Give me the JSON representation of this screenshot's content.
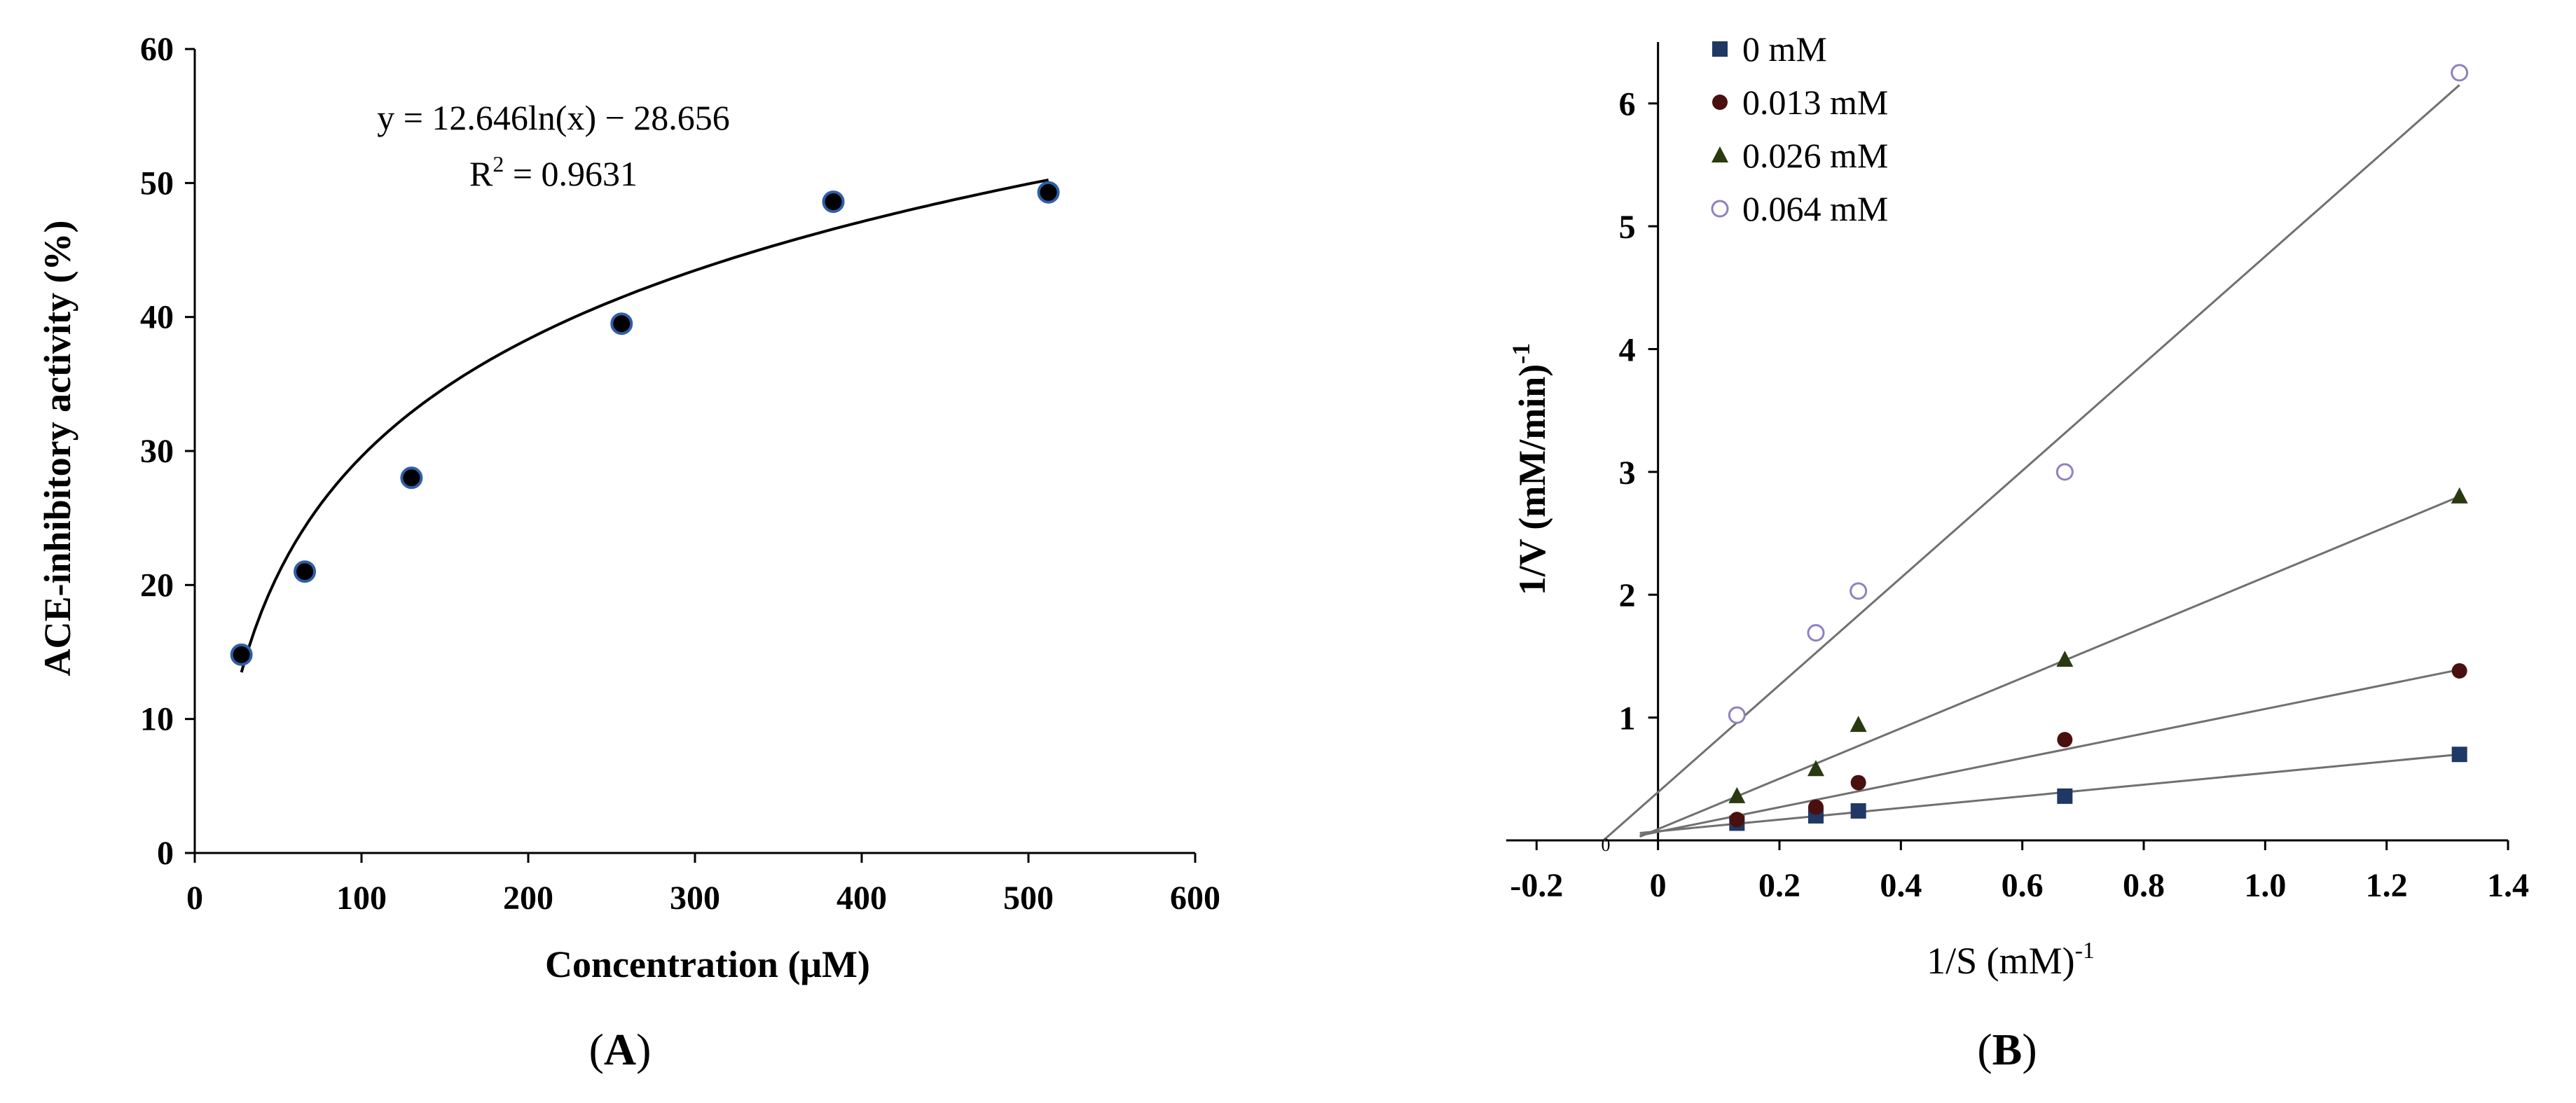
{
  "chart_data": [
    {
      "type": "scatter",
      "panel_label": "A",
      "xlabel": "Concentration (μM)",
      "ylabel": "ACE-inhibitory activity (%)",
      "xlim": [
        0,
        600
      ],
      "ylim": [
        0,
        60
      ],
      "xticks": [
        0,
        100,
        200,
        300,
        400,
        500,
        600
      ],
      "yticks": [
        0,
        10,
        20,
        30,
        40,
        50,
        60
      ],
      "x": [
        28,
        66,
        130,
        256,
        383,
        512
      ],
      "y": [
        14.8,
        21.0,
        28.0,
        39.5,
        48.6,
        49.3
      ],
      "fit": {
        "kind": "log",
        "a": 12.646,
        "b": -28.656,
        "x_from": 28,
        "x_to": 512
      },
      "equation": "y = 12.646ln(x) − 28.656",
      "r2_label": "R",
      "r2_sup": "2",
      "r2_value": " = 0.9631"
    },
    {
      "type": "scatter",
      "panel_label": "B",
      "xlabel": "1/S (mM)",
      "xlabel_sup": "-1",
      "ylabel": "1/V (mM/min)",
      "ylabel_sup": "-1",
      "xlim": [
        -0.25,
        1.4
      ],
      "ylim": [
        0,
        6.5
      ],
      "xticks": [
        {
          "v": -0.2,
          "label": "-0.2"
        },
        {
          "v": 0,
          "label": "0"
        },
        {
          "v": 0.2,
          "label": "0.2"
        },
        {
          "v": 0.4,
          "label": "0.4"
        },
        {
          "v": 0.6,
          "label": "0.6"
        },
        {
          "v": 0.8,
          "label": "0.8"
        },
        {
          "v": 1.0,
          "label": "1.0"
        },
        {
          "v": 1.2,
          "label": "1.2"
        },
        {
          "v": 1.4,
          "label": "1.4"
        }
      ],
      "yticks": [
        {
          "v": 1,
          "label": "1"
        },
        {
          "v": 2,
          "label": "2"
        },
        {
          "v": 3,
          "label": "3"
        },
        {
          "v": 4,
          "label": "4"
        },
        {
          "v": 5,
          "label": "5"
        },
        {
          "v": 6,
          "label": "6"
        }
      ],
      "legend_position": "top-left",
      "series": [
        {
          "name": "0 mM",
          "marker": "square",
          "color": "#1f3864",
          "x": [
            0.13,
            0.26,
            0.33,
            0.67,
            1.32
          ],
          "y": [
            0.14,
            0.2,
            0.24,
            0.36,
            0.7
          ],
          "fit": {
            "x_from": -0.03,
            "x_to": 1.32,
            "y_from": 0.06,
            "y_to": 0.7
          }
        },
        {
          "name": "0.013 mM",
          "marker": "circle",
          "color": "#4a1010",
          "x": [
            0.13,
            0.26,
            0.33,
            0.67,
            1.32
          ],
          "y": [
            0.17,
            0.27,
            0.47,
            0.82,
            1.38
          ],
          "fit": {
            "x_from": -0.03,
            "x_to": 1.32,
            "y_from": 0.04,
            "y_to": 1.39
          }
        },
        {
          "name": "0.026 mM",
          "marker": "triangle",
          "color": "#2a3a10",
          "x": [
            0.13,
            0.26,
            0.33,
            0.67,
            1.32
          ],
          "y": [
            0.36,
            0.58,
            0.94,
            1.47,
            2.8
          ],
          "fit": {
            "x_from": -0.03,
            "x_to": 1.32,
            "y_from": 0.03,
            "y_to": 2.8
          }
        },
        {
          "name": "0.064 mM",
          "marker": "open-circle",
          "color": "#9080c0",
          "x": [
            0.13,
            0.26,
            0.33,
            0.67,
            1.32
          ],
          "y": [
            1.02,
            1.69,
            2.03,
            3.0,
            6.25
          ],
          "fit": {
            "x_from": -0.09,
            "x_to": 1.32,
            "y_from": 0.0,
            "y_to": 6.15
          }
        }
      ],
      "intercept_label": "0"
    }
  ]
}
